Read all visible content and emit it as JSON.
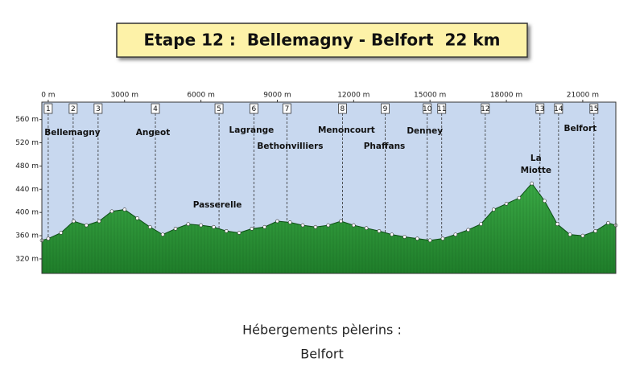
{
  "chart_data": {
    "type": "area",
    "title": "Etape 12 :  Bellemagny - Belfort  22 km",
    "footer": [
      "Hébergements pèlerins :",
      "Belfort"
    ],
    "color": "#2f9a3a",
    "background": "#c8d8ef",
    "x": [
      -250,
      0,
      500,
      1000,
      1500,
      2000,
      2500,
      3000,
      3500,
      4000,
      4500,
      5000,
      5500,
      6000,
      6500,
      7000,
      7500,
      8000,
      8500,
      9000,
      9500,
      10000,
      10500,
      11000,
      11500,
      12000,
      12500,
      13000,
      13500,
      14000,
      14500,
      15000,
      15500,
      16000,
      16500,
      17000,
      17500,
      18000,
      18500,
      19000,
      19500,
      20000,
      20500,
      21000,
      21500,
      22000,
      22300
    ],
    "values": [
      352,
      355,
      365,
      385,
      378,
      385,
      402,
      405,
      390,
      375,
      362,
      372,
      380,
      378,
      375,
      368,
      365,
      372,
      375,
      385,
      383,
      378,
      375,
      378,
      385,
      378,
      373,
      368,
      362,
      358,
      355,
      352,
      355,
      362,
      370,
      380,
      405,
      415,
      425,
      450,
      420,
      380,
      362,
      360,
      368,
      382,
      378
    ],
    "xlim": [
      -250,
      22300
    ],
    "ylim": [
      295,
      590
    ],
    "xticks": [
      {
        "value": 0,
        "label": "0 m"
      },
      {
        "value": 3000,
        "label": "3000 m"
      },
      {
        "value": 6000,
        "label": "6000 m"
      },
      {
        "value": 9000,
        "label": "9000 m"
      },
      {
        "value": 12000,
        "label": "12000 m"
      },
      {
        "value": 15000,
        "label": "15000 m"
      },
      {
        "value": 18000,
        "label": "18000 m"
      },
      {
        "value": 21000,
        "label": "21000 m"
      }
    ],
    "yticks": [
      {
        "value": 320,
        "label": "320 m"
      },
      {
        "value": 360,
        "label": "360 m"
      },
      {
        "value": 400,
        "label": "400 m"
      },
      {
        "value": 440,
        "label": "440 m"
      },
      {
        "value": 480,
        "label": "480 m"
      },
      {
        "value": 520,
        "label": "520 m"
      },
      {
        "value": 560,
        "label": "560 m"
      }
    ],
    "waypoints": [
      {
        "number": 1,
        "x": 0
      },
      {
        "number": 2,
        "x": 980,
        "label": [
          "Bellemagny"
        ]
      },
      {
        "number": 3,
        "x": 1960
      },
      {
        "number": 4,
        "x": 4210,
        "label": [
          "Angeot"
        ]
      },
      {
        "number": 5,
        "x": 6710,
        "label": [
          "Passerelle"
        ]
      },
      {
        "number": 6,
        "x": 8080,
        "label": [
          "Lagrange"
        ]
      },
      {
        "number": 7,
        "x": 9380,
        "label": [
          "Bethonvilliers"
        ]
      },
      {
        "number": 8,
        "x": 11560,
        "label": [
          "Menoncourt"
        ]
      },
      {
        "number": 9,
        "x": 13240,
        "label": [
          "Phaffans"
        ]
      },
      {
        "number": 10,
        "x": 14890,
        "label": [
          "Denney"
        ]
      },
      {
        "number": 11,
        "x": 15460
      },
      {
        "number": 12,
        "x": 17170
      },
      {
        "number": 13,
        "x": 19320,
        "label": [
          "La",
          "Miotte"
        ]
      },
      {
        "number": 14,
        "x": 20050
      },
      {
        "number": 15,
        "x": 21440,
        "label": [
          "Belfort"
        ]
      }
    ]
  }
}
